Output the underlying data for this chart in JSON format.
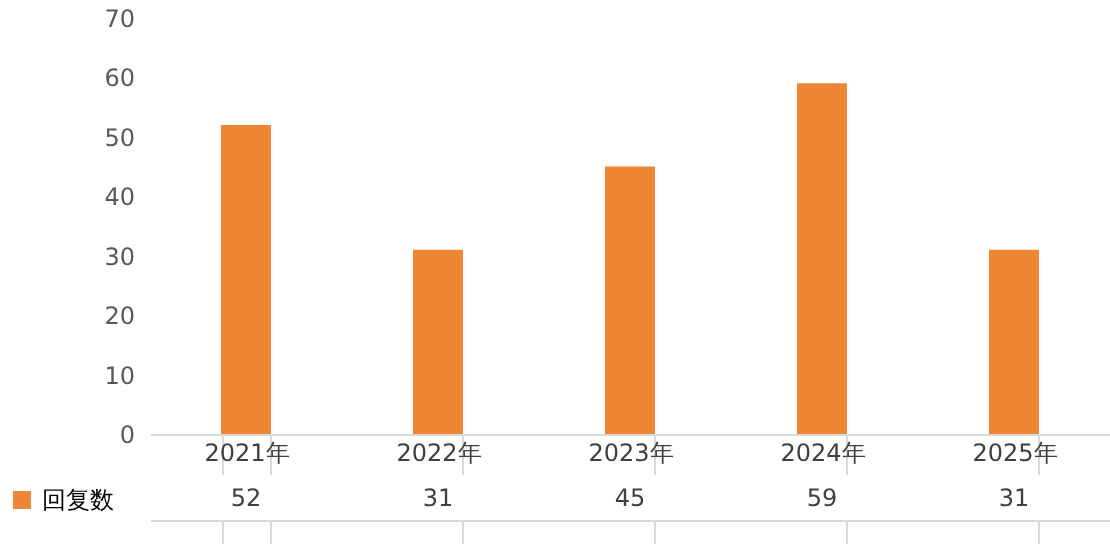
{
  "chart_data": {
    "type": "bar",
    "categories": [
      "2021年",
      "2022年",
      "2023年",
      "2024年",
      "2025年"
    ],
    "series": [
      {
        "name": "回复数",
        "color": "#ef8633",
        "values": [
          52,
          31,
          45,
          59,
          31
        ]
      }
    ],
    "ylim": [
      0,
      70
    ],
    "yticks": [
      0,
      10,
      20,
      30,
      40,
      50,
      60,
      70
    ],
    "grid": false,
    "legend": "bottom left",
    "data_labels": true
  }
}
